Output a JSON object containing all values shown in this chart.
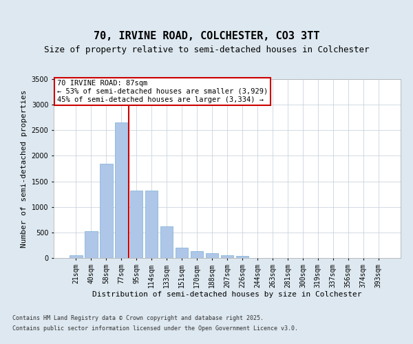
{
  "title_line1": "70, IRVINE ROAD, COLCHESTER, CO3 3TT",
  "title_line2": "Size of property relative to semi-detached houses in Colchester",
  "xlabel": "Distribution of semi-detached houses by size in Colchester",
  "ylabel": "Number of semi-detached properties",
  "categories": [
    "21sqm",
    "40sqm",
    "58sqm",
    "77sqm",
    "95sqm",
    "114sqm",
    "133sqm",
    "151sqm",
    "170sqm",
    "188sqm",
    "207sqm",
    "226sqm",
    "244sqm",
    "263sqm",
    "281sqm",
    "300sqm",
    "319sqm",
    "337sqm",
    "356sqm",
    "374sqm",
    "393sqm"
  ],
  "values": [
    60,
    520,
    1840,
    2650,
    1320,
    1320,
    620,
    200,
    130,
    90,
    50,
    40,
    0,
    0,
    0,
    0,
    0,
    0,
    0,
    0,
    0
  ],
  "bar_color": "#aec6e8",
  "bar_edge_color": "#7aafd4",
  "vline_color": "#cc0000",
  "annotation_title": "70 IRVINE ROAD: 87sqm",
  "annotation_line1": "← 53% of semi-detached houses are smaller (3,929)",
  "annotation_line2": "45% of semi-detached houses are larger (3,334) →",
  "annotation_box_color": "#cc0000",
  "ylim": [
    0,
    3500
  ],
  "yticks": [
    0,
    500,
    1000,
    1500,
    2000,
    2500,
    3000,
    3500
  ],
  "background_color": "#dde8f0",
  "plot_background": "#ffffff",
  "grid_color": "#c0ccd8",
  "footnote_line1": "Contains HM Land Registry data © Crown copyright and database right 2025.",
  "footnote_line2": "Contains public sector information licensed under the Open Government Licence v3.0.",
  "title_fontsize": 11,
  "subtitle_fontsize": 9,
  "axis_label_fontsize": 8,
  "tick_fontsize": 7,
  "annotation_fontsize": 7.5,
  "footnote_fontsize": 6
}
